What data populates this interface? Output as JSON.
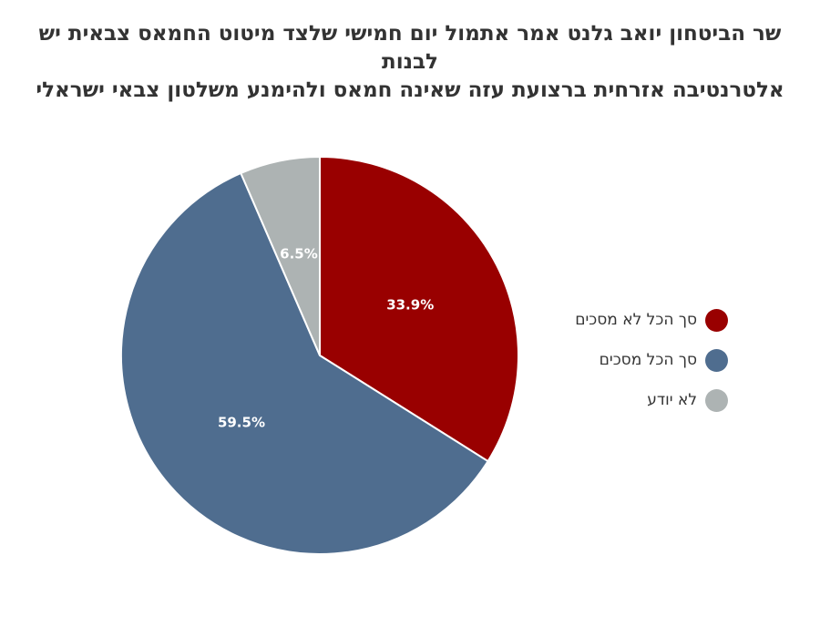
{
  "title_lines": [
    "שר הביטחון יואב גלנט אמר אתמול יום חמישי שלצד מיטוט החמאס צבאית יש לבנות",
    "אלטרנטיבה אזרחית ברצועת עזה שאינה חמאס ולהימנע משלטון צבאי ישראלי"
  ],
  "chart_data": {
    "type": "pie",
    "title": "שר הביטחון יואב גלנט אמר אתמול יום חמישי שלצד מיטוט החמאס צבאית יש לבנות אלטרנטיבה אזרחית ברצועת עזה שאינה חמאס ולהימנע משלטון צבאי ישראלי",
    "start_angle_deg": 0,
    "direction": "clockwise",
    "legend_position": "right",
    "slices": [
      {
        "label": "סך הכל לא מסכים",
        "value": 33.9,
        "display": "33.9%",
        "color": "#990000"
      },
      {
        "label": "סך הכל מסכים",
        "value": 59.5,
        "display": "59.5%",
        "color": "#4f6d8f"
      },
      {
        "label": "לא יודע",
        "value": 6.5,
        "display": "6.5%",
        "color": "#adb3b3"
      }
    ]
  }
}
